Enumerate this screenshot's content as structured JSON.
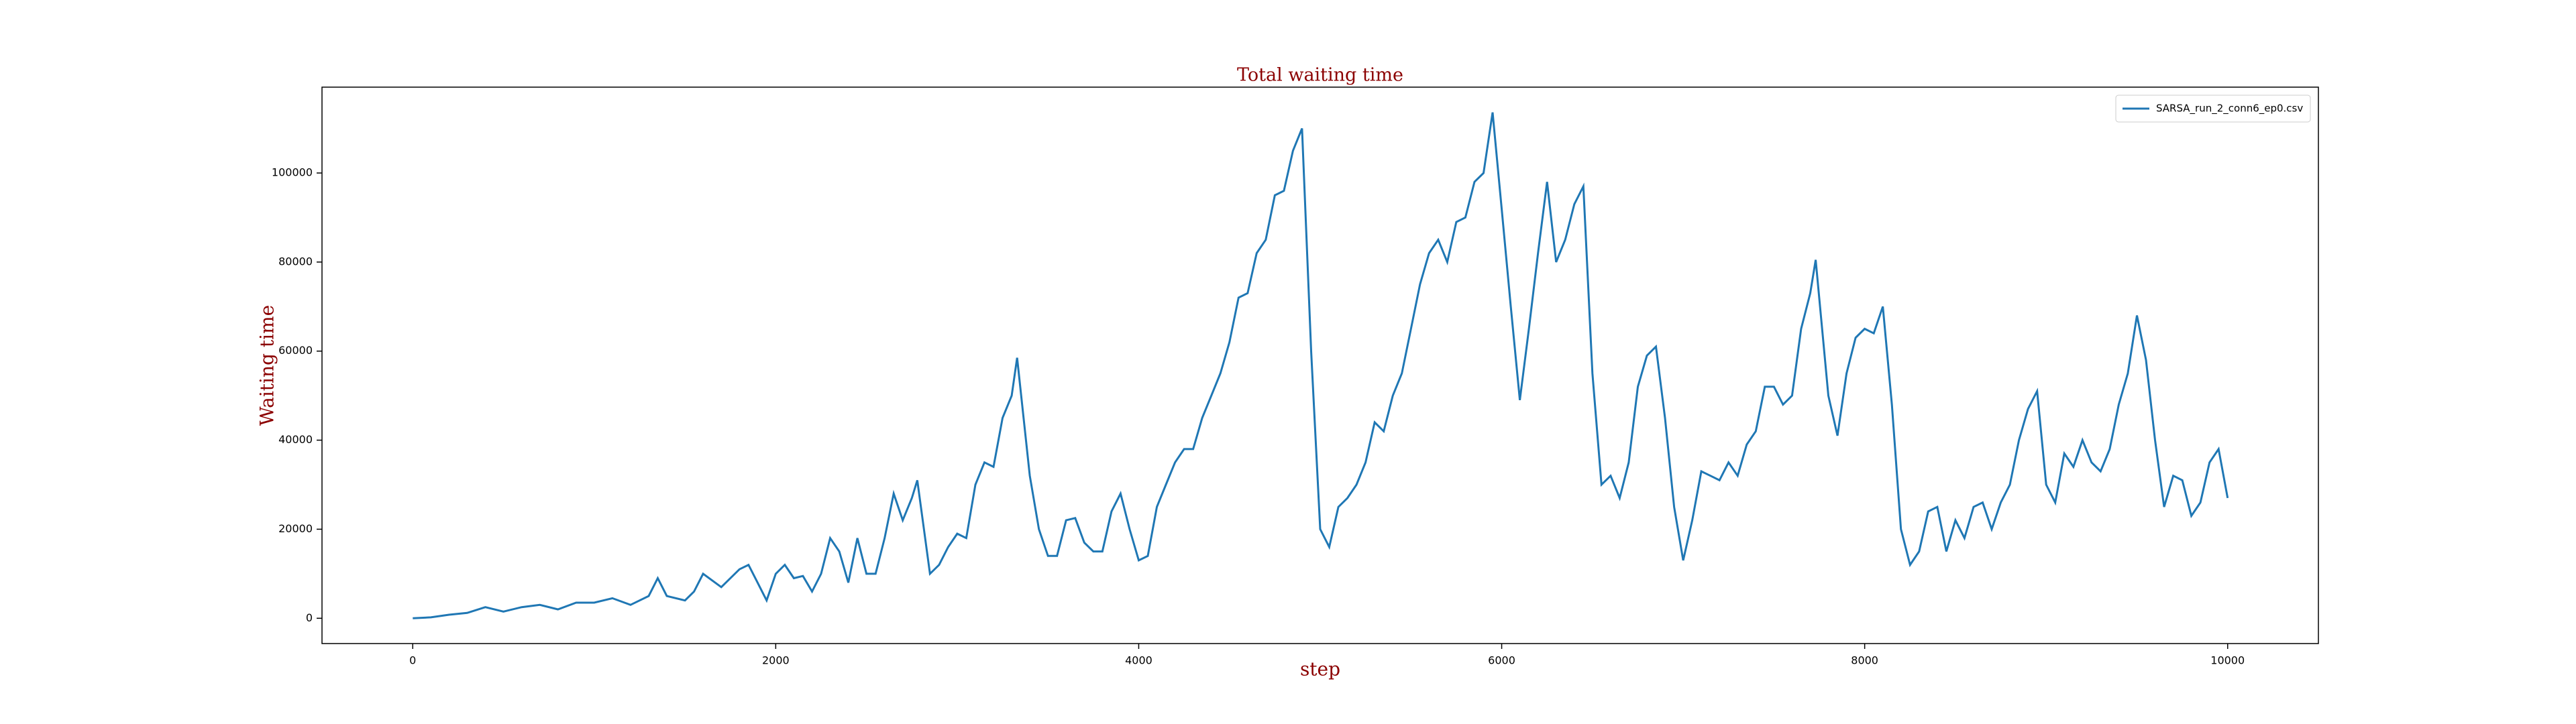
{
  "chart_data": {
    "type": "line",
    "title": "Total waiting time",
    "xlabel": "step",
    "ylabel": "Waiting time",
    "x": [
      0,
      100,
      200,
      300,
      400,
      500,
      600,
      700,
      800,
      900,
      1000,
      1100,
      1200,
      1300,
      1350,
      1400,
      1500,
      1550,
      1600,
      1700,
      1800,
      1850,
      1900,
      1950,
      2000,
      2050,
      2100,
      2150,
      2200,
      2250,
      2300,
      2350,
      2400,
      2450,
      2500,
      2550,
      2600,
      2650,
      2700,
      2750,
      2780,
      2850,
      2900,
      2950,
      3000,
      3050,
      3100,
      3150,
      3200,
      3250,
      3300,
      3330,
      3400,
      3450,
      3500,
      3550,
      3600,
      3650,
      3700,
      3750,
      3800,
      3850,
      3900,
      3950,
      4000,
      4050,
      4100,
      4150,
      4200,
      4250,
      4300,
      4350,
      4400,
      4450,
      4500,
      4550,
      4600,
      4650,
      4700,
      4750,
      4800,
      4850,
      4900,
      4950,
      5000,
      5050,
      5100,
      5150,
      5200,
      5250,
      5300,
      5350,
      5400,
      5450,
      5500,
      5550,
      5600,
      5650,
      5700,
      5750,
      5800,
      5850,
      5900,
      5950,
      6000,
      6050,
      6100,
      6150,
      6200,
      6250,
      6300,
      6350,
      6400,
      6450,
      6500,
      6550,
      6600,
      6650,
      6700,
      6750,
      6800,
      6850,
      6900,
      6950,
      7000,
      7050,
      7100,
      7150,
      7200,
      7250,
      7300,
      7350,
      7400,
      7450,
      7500,
      7550,
      7600,
      7650,
      7700,
      7730,
      7800,
      7850,
      7900,
      7950,
      8000,
      8050,
      8100,
      8150,
      8200,
      8250,
      8300,
      8350,
      8400,
      8450,
      8500,
      8550,
      8600,
      8650,
      8700,
      8750,
      8800,
      8850,
      8900,
      8950,
      9000,
      9050,
      9100,
      9150,
      9200,
      9250,
      9300,
      9350,
      9400,
      9450,
      9500,
      9550,
      9600,
      9650,
      9700,
      9750,
      9800,
      9850,
      9900,
      9950,
      10000
    ],
    "series": [
      {
        "name": "SARSA_run_2_conn6_ep0.csv",
        "color": "#1f77b4",
        "values": [
          0,
          200,
          800,
          1200,
          2500,
          1500,
          2500,
          3000,
          2000,
          3500,
          3500,
          4500,
          3000,
          5000,
          9000,
          5000,
          4000,
          6000,
          10000,
          7000,
          11000,
          12000,
          8000,
          4000,
          10000,
          12000,
          9000,
          9500,
          6000,
          10000,
          18000,
          15000,
          8000,
          18000,
          10000,
          10000,
          18000,
          28000,
          22000,
          27000,
          31000,
          10000,
          12000,
          16000,
          19000,
          18000,
          30000,
          35000,
          34000,
          45000,
          50000,
          58500,
          32000,
          20000,
          14000,
          14000,
          22000,
          22500,
          17000,
          15000,
          15000,
          24000,
          28000,
          20000,
          13000,
          14000,
          25000,
          30000,
          35000,
          38000,
          38000,
          45000,
          50000,
          55000,
          62000,
          72000,
          73000,
          82000,
          85000,
          95000,
          96000,
          105000,
          110000,
          60000,
          20000,
          16000,
          25000,
          27000,
          30000,
          35000,
          44000,
          42000,
          50000,
          55000,
          65000,
          75000,
          82000,
          85000,
          80000,
          89000,
          90000,
          98000,
          100000,
          113600,
          92000,
          70000,
          49000,
          65000,
          82000,
          98000,
          80000,
          85000,
          93000,
          97000,
          55000,
          30000,
          32000,
          27000,
          35000,
          52000,
          59000,
          61000,
          45000,
          25000,
          13000,
          22000,
          33000,
          32000,
          31000,
          35000,
          32000,
          39000,
          42000,
          52000,
          52000,
          48000,
          50000,
          65000,
          73000,
          80500,
          50000,
          41000,
          55000,
          63000,
          65000,
          64000,
          70000,
          48000,
          20000,
          12000,
          15000,
          24000,
          25000,
          15000,
          22000,
          18000,
          25000,
          26000,
          20000,
          26000,
          30000,
          40000,
          47000,
          51000,
          30000,
          26000,
          37000,
          34000,
          40000,
          35000,
          33000,
          38000,
          48000,
          55000,
          68000,
          58000,
          40000,
          25000,
          32000,
          31000,
          23000,
          26000,
          35000,
          38000,
          27000
        ]
      }
    ],
    "xlim": [
      -500,
      10500
    ],
    "ylim": [
      -5680,
      119280
    ],
    "xticks": [
      0,
      2000,
      4000,
      6000,
      8000,
      10000
    ],
    "yticks": [
      0,
      20000,
      40000,
      60000,
      80000,
      100000
    ],
    "legend": "upper right"
  }
}
